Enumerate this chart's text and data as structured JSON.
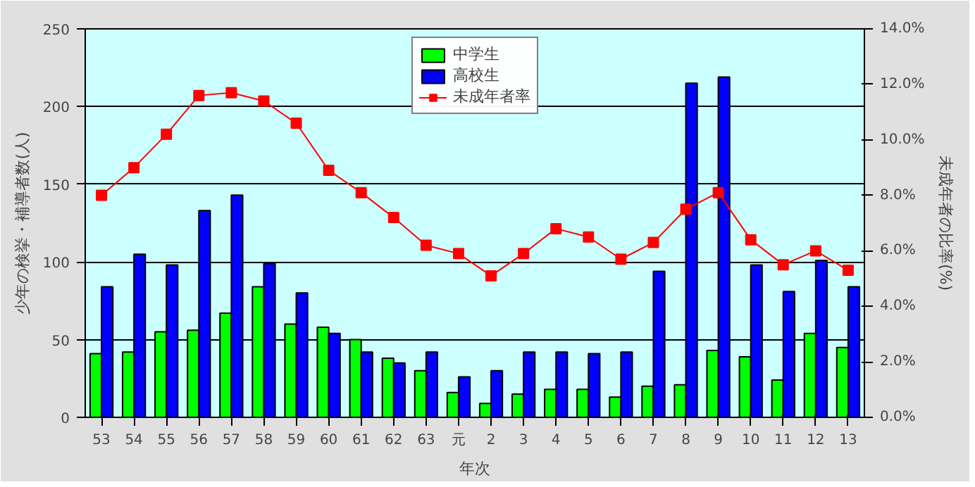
{
  "chart_data": {
    "type": "bar",
    "xlabel": "年次",
    "ylabel": "少年の検挙・補導者数(人)",
    "y2label": "未成年者の比率(%)",
    "categories": [
      "53",
      "54",
      "55",
      "56",
      "57",
      "58",
      "59",
      "60",
      "61",
      "62",
      "63",
      "元",
      "2",
      "3",
      "4",
      "5",
      "6",
      "7",
      "8",
      "9",
      "10",
      "11",
      "12",
      "13"
    ],
    "series": [
      {
        "name": "中学生",
        "color": "#00ff00",
        "values": [
          41,
          42,
          55,
          56,
          67,
          84,
          60,
          58,
          50,
          38,
          30,
          16,
          9,
          15,
          18,
          18,
          13,
          20,
          21,
          43,
          39,
          24,
          54,
          45
        ]
      },
      {
        "name": "高校生",
        "color": "#0000ff",
        "values": [
          84,
          105,
          98,
          133,
          143,
          99,
          80,
          54,
          42,
          35,
          42,
          26,
          30,
          42,
          42,
          41,
          42,
          94,
          215,
          219,
          98,
          81,
          101,
          84
        ]
      },
      {
        "name": "未成年者率",
        "type": "line",
        "axis": "y2",
        "color": "#ff0000",
        "marker": "square",
        "values": [
          8.0,
          9.0,
          10.2,
          11.6,
          11.7,
          11.4,
          10.6,
          8.9,
          8.1,
          7.2,
          6.2,
          5.9,
          5.1,
          5.9,
          6.8,
          6.5,
          5.7,
          6.3,
          7.5,
          8.1,
          6.4,
          5.5,
          6.0,
          5.3
        ]
      }
    ],
    "ylim": [
      0,
      250
    ],
    "yticks": [
      0,
      50,
      100,
      150,
      200,
      250
    ],
    "y2lim": [
      0,
      14
    ],
    "y2ticks": [
      {
        "value": 0,
        "label": "0.0%"
      },
      {
        "value": 2,
        "label": "2.0%"
      },
      {
        "value": 4,
        "label": "4.0%"
      },
      {
        "value": 6,
        "label": "6.0%"
      },
      {
        "value": 8,
        "label": "8.0%"
      },
      {
        "value": 10,
        "label": "10.0%"
      },
      {
        "value": 12,
        "label": "12.0%"
      },
      {
        "value": 14,
        "label": "14.0%"
      }
    ],
    "grid": "y",
    "legend": "top"
  }
}
